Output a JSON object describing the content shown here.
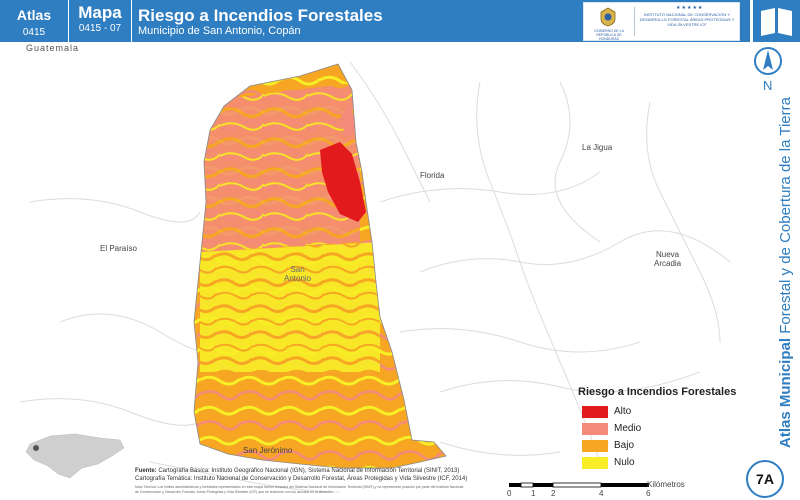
{
  "header": {
    "atlas_label": "Atlas",
    "atlas_number": "0415",
    "mapa_label": "Mapa",
    "mapa_number": "0415 - 07",
    "title": "Riesgo a Incendios Forestales",
    "subtitle": "Municipio de San Antonio, Copán",
    "logo_gov_text": "GOBIERNO DE LA REPÚBLICA DE HONDURAS",
    "logo_inst_text": "INSTITUTO NACIONAL DE CONSERVACIÓN Y DESARROLLO FORESTAL ÁREAS PROTEGIDAS Y VIDA SILVESTRE ICF",
    "logo_stars": "★★★★★",
    "book_icon": "book-icon",
    "seal_icon": "seal-icon"
  },
  "map": {
    "country_label": "Guatemala",
    "places": {
      "florida": "Florida",
      "la_jigua": "La Jigua",
      "el_paraiso": "El Paraíso",
      "nueva_arcadia": "Nueva\nArcadia",
      "san_antonio": "San\nAntonio",
      "san_jeronimo": "San Jerónimo"
    }
  },
  "legend": {
    "title": "Riesgo a Incendios Forestales",
    "items": [
      {
        "label": "Alto",
        "color": "#e31a1c"
      },
      {
        "label": "Medio",
        "color": "#f48a7a"
      },
      {
        "label": "Bajo",
        "color": "#f6a623"
      },
      {
        "label": "Nulo",
        "color": "#f7ee26"
      }
    ]
  },
  "source": {
    "label": "Fuente:",
    "line1": "Cartografía Básica: Instituto Geográfico Nacional (IGN), Sistema Nacional de Información Territorial (SINIT, 2013)",
    "line2": "Cartografía Temática: Instituto Nacional de Conservación y Desarrollo Forestal, Áreas Protegidas y Vida Silvestre (ICF, 2014)",
    "fine_print": "Nota Técnica: Los límites administrativos y forestales representados en este mapa fueron tomados del Sistema Nacional de Información Territorial (SINIT) y no representan posición por parte del Instituto Nacional de Conservación y Desarrollo Forestal, Áreas Protegidas y Vida Silvestre (ICF) que se relacione con los asuntos en la situación."
  },
  "scale": {
    "ticks": [
      "0",
      "1",
      "2",
      "4",
      "6"
    ],
    "unit": "Kilómetros"
  },
  "north": {
    "label": "N"
  },
  "side": {
    "bold": "Atlas Municipal",
    "rest": " Forestal y de Cobertura de la Tierra"
  },
  "badge": "7A"
}
